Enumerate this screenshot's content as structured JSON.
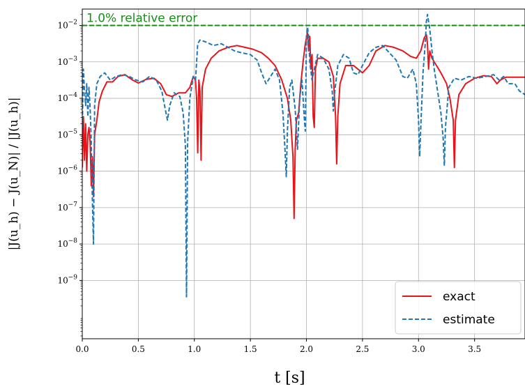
{
  "chart_data": {
    "type": "line",
    "xlabel": "t [s]",
    "ylabel": "|J(u_h) − J(u_N)| / |J(u_h)|",
    "xlim": [
      0.0,
      3.95
    ],
    "ylim_log10": [
      -10.6,
      -1.55
    ],
    "yscale": "log",
    "grid": true,
    "legend_position": "lower-right",
    "x_ticks": [
      "0.0",
      "0.5",
      "1.0",
      "1.5",
      "2.0",
      "2.5",
      "3.0",
      "3.5"
    ],
    "x_tick_values": [
      0.0,
      0.5,
      1.0,
      1.5,
      2.0,
      2.5,
      3.0,
      3.5
    ],
    "y_tick_exponents": [
      -2,
      -3,
      -4,
      -5,
      -6,
      -7,
      -8,
      -9
    ],
    "reference_line": {
      "label": "1.0% relative error",
      "value": 0.01,
      "color": "#1a8a1a"
    },
    "series": [
      {
        "name": "exact",
        "color": "#e8141a",
        "dash": "solid",
        "points": [
          [
            0.0,
            -5.9
          ],
          [
            0.01,
            -4.5
          ],
          [
            0.02,
            -5.7
          ],
          [
            0.03,
            -4.7
          ],
          [
            0.04,
            -6.0
          ],
          [
            0.05,
            -5.0
          ],
          [
            0.06,
            -4.8
          ],
          [
            0.07,
            -5.2
          ],
          [
            0.08,
            -6.4
          ],
          [
            0.09,
            -5.6
          ],
          [
            0.1,
            -6.7
          ],
          [
            0.11,
            -5.0
          ],
          [
            0.13,
            -4.6
          ],
          [
            0.15,
            -4.1
          ],
          [
            0.18,
            -3.8
          ],
          [
            0.22,
            -3.55
          ],
          [
            0.27,
            -3.55
          ],
          [
            0.32,
            -3.4
          ],
          [
            0.38,
            -3.35
          ],
          [
            0.45,
            -3.5
          ],
          [
            0.5,
            -3.58
          ],
          [
            0.57,
            -3.48
          ],
          [
            0.64,
            -3.45
          ],
          [
            0.7,
            -3.6
          ],
          [
            0.75,
            -3.9
          ],
          [
            0.8,
            -3.95
          ],
          [
            0.86,
            -3.85
          ],
          [
            0.92,
            -3.85
          ],
          [
            0.96,
            -3.7
          ],
          [
            0.99,
            -3.4
          ],
          [
            1.01,
            -3.5
          ],
          [
            1.02,
            -4.0
          ],
          [
            1.03,
            -5.5
          ],
          [
            1.04,
            -3.5
          ],
          [
            1.05,
            -3.8
          ],
          [
            1.06,
            -5.7
          ],
          [
            1.07,
            -3.7
          ],
          [
            1.1,
            -3.2
          ],
          [
            1.15,
            -2.9
          ],
          [
            1.22,
            -2.7
          ],
          [
            1.3,
            -2.6
          ],
          [
            1.38,
            -2.55
          ],
          [
            1.45,
            -2.6
          ],
          [
            1.52,
            -2.65
          ],
          [
            1.6,
            -2.75
          ],
          [
            1.66,
            -2.9
          ],
          [
            1.72,
            -3.1
          ],
          [
            1.78,
            -3.5
          ],
          [
            1.83,
            -4.0
          ],
          [
            1.86,
            -4.6
          ],
          [
            1.88,
            -5.6
          ],
          [
            1.89,
            -7.3
          ],
          [
            1.9,
            -5.4
          ],
          [
            1.91,
            -4.6
          ],
          [
            1.93,
            -4.4
          ],
          [
            1.95,
            -3.6
          ],
          [
            1.97,
            -3.0
          ],
          [
            1.99,
            -2.5
          ],
          [
            2.01,
            -2.2
          ],
          [
            2.02,
            -2.7
          ],
          [
            2.03,
            -2.3
          ],
          [
            2.04,
            -3.2
          ],
          [
            2.05,
            -2.8
          ],
          [
            2.06,
            -4.5
          ],
          [
            2.07,
            -4.8
          ],
          [
            2.08,
            -3.2
          ],
          [
            2.1,
            -2.9
          ],
          [
            2.15,
            -2.9
          ],
          [
            2.2,
            -3.0
          ],
          [
            2.24,
            -3.4
          ],
          [
            2.26,
            -4.5
          ],
          [
            2.27,
            -5.8
          ],
          [
            2.28,
            -4.5
          ],
          [
            2.3,
            -3.6
          ],
          [
            2.35,
            -3.1
          ],
          [
            2.42,
            -3.1
          ],
          [
            2.5,
            -3.3
          ],
          [
            2.56,
            -3.1
          ],
          [
            2.62,
            -2.7
          ],
          [
            2.7,
            -2.55
          ],
          [
            2.78,
            -2.6
          ],
          [
            2.86,
            -2.7
          ],
          [
            2.93,
            -2.85
          ],
          [
            2.98,
            -2.9
          ],
          [
            3.02,
            -2.7
          ],
          [
            3.05,
            -2.35
          ],
          [
            3.07,
            -2.25
          ],
          [
            3.08,
            -2.5
          ],
          [
            3.09,
            -3.2
          ],
          [
            3.1,
            -2.7
          ],
          [
            3.12,
            -2.9
          ],
          [
            3.16,
            -3.1
          ],
          [
            3.2,
            -3.3
          ],
          [
            3.25,
            -3.6
          ],
          [
            3.28,
            -4.0
          ],
          [
            3.31,
            -4.6
          ],
          [
            3.32,
            -5.9
          ],
          [
            3.33,
            -4.6
          ],
          [
            3.36,
            -3.9
          ],
          [
            3.42,
            -3.6
          ],
          [
            3.5,
            -3.45
          ],
          [
            3.58,
            -3.38
          ],
          [
            3.65,
            -3.4
          ],
          [
            3.7,
            -3.6
          ],
          [
            3.73,
            -3.5
          ],
          [
            3.78,
            -3.42
          ],
          [
            3.85,
            -3.42
          ],
          [
            3.95,
            -3.42
          ]
        ]
      },
      {
        "name": "estimate",
        "color": "#1f77b4",
        "dash": "dashed",
        "points": [
          [
            0.0,
            -4.8
          ],
          [
            0.01,
            -3.2
          ],
          [
            0.02,
            -3.8
          ],
          [
            0.03,
            -4.2
          ],
          [
            0.04,
            -3.6
          ],
          [
            0.05,
            -4.5
          ],
          [
            0.06,
            -3.7
          ],
          [
            0.07,
            -4.3
          ],
          [
            0.08,
            -5.2
          ],
          [
            0.09,
            -6.8
          ],
          [
            0.1,
            -8.0
          ],
          [
            0.11,
            -4.2
          ],
          [
            0.13,
            -3.6
          ],
          [
            0.16,
            -3.4
          ],
          [
            0.2,
            -3.3
          ],
          [
            0.25,
            -3.5
          ],
          [
            0.3,
            -3.4
          ],
          [
            0.36,
            -3.35
          ],
          [
            0.42,
            -3.4
          ],
          [
            0.48,
            -3.5
          ],
          [
            0.54,
            -3.55
          ],
          [
            0.6,
            -3.4
          ],
          [
            0.66,
            -3.5
          ],
          [
            0.71,
            -3.8
          ],
          [
            0.74,
            -4.3
          ],
          [
            0.76,
            -4.6
          ],
          [
            0.78,
            -4.2
          ],
          [
            0.82,
            -3.85
          ],
          [
            0.87,
            -3.95
          ],
          [
            0.9,
            -4.4
          ],
          [
            0.92,
            -5.3
          ],
          [
            0.93,
            -9.45
          ],
          [
            0.94,
            -5.2
          ],
          [
            0.96,
            -4.0
          ],
          [
            0.99,
            -3.4
          ],
          [
            1.01,
            -3.5
          ],
          [
            1.03,
            -2.5
          ],
          [
            1.05,
            -2.4
          ],
          [
            1.1,
            -2.45
          ],
          [
            1.17,
            -2.55
          ],
          [
            1.24,
            -2.5
          ],
          [
            1.3,
            -2.6
          ],
          [
            1.36,
            -2.7
          ],
          [
            1.42,
            -2.75
          ],
          [
            1.5,
            -2.8
          ],
          [
            1.56,
            -2.95
          ],
          [
            1.6,
            -3.3
          ],
          [
            1.64,
            -3.6
          ],
          [
            1.68,
            -3.4
          ],
          [
            1.72,
            -3.2
          ],
          [
            1.76,
            -3.5
          ],
          [
            1.79,
            -4.4
          ],
          [
            1.81,
            -5.5
          ],
          [
            1.82,
            -6.15
          ],
          [
            1.83,
            -4.9
          ],
          [
            1.85,
            -3.7
          ],
          [
            1.87,
            -3.5
          ],
          [
            1.9,
            -4.3
          ],
          [
            1.92,
            -5.4
          ],
          [
            1.94,
            -4.0
          ],
          [
            1.96,
            -3.5
          ],
          [
            1.98,
            -4.5
          ],
          [
            1.99,
            -4.9
          ],
          [
            2.0,
            -2.3
          ],
          [
            2.01,
            -2.05
          ],
          [
            2.02,
            -2.3
          ],
          [
            2.03,
            -3.0
          ],
          [
            2.05,
            -3.5
          ],
          [
            2.07,
            -3.2
          ],
          [
            2.1,
            -2.8
          ],
          [
            2.15,
            -2.9
          ],
          [
            2.2,
            -3.2
          ],
          [
            2.23,
            -3.8
          ],
          [
            2.24,
            -4.35
          ],
          [
            2.25,
            -3.9
          ],
          [
            2.28,
            -3.1
          ],
          [
            2.33,
            -2.8
          ],
          [
            2.38,
            -2.9
          ],
          [
            2.42,
            -3.3
          ],
          [
            2.46,
            -3.35
          ],
          [
            2.5,
            -3.1
          ],
          [
            2.56,
            -2.75
          ],
          [
            2.62,
            -2.6
          ],
          [
            2.68,
            -2.55
          ],
          [
            2.74,
            -2.75
          ],
          [
            2.8,
            -2.95
          ],
          [
            2.86,
            -3.4
          ],
          [
            2.9,
            -3.45
          ],
          [
            2.95,
            -3.2
          ],
          [
            2.98,
            -3.6
          ],
          [
            3.0,
            -4.6
          ],
          [
            3.01,
            -5.6
          ],
          [
            3.02,
            -4.8
          ],
          [
            3.04,
            -3.3
          ],
          [
            3.06,
            -2.5
          ],
          [
            3.07,
            -1.9
          ],
          [
            3.08,
            -1.7
          ],
          [
            3.1,
            -2.1
          ],
          [
            3.12,
            -2.7
          ],
          [
            3.14,
            -3.2
          ],
          [
            3.17,
            -3.8
          ],
          [
            3.2,
            -4.4
          ],
          [
            3.22,
            -5.1
          ],
          [
            3.23,
            -5.85
          ],
          [
            3.24,
            -4.8
          ],
          [
            3.27,
            -3.7
          ],
          [
            3.32,
            -3.45
          ],
          [
            3.38,
            -3.5
          ],
          [
            3.45,
            -3.4
          ],
          [
            3.52,
            -3.45
          ],
          [
            3.6,
            -3.4
          ],
          [
            3.67,
            -3.35
          ],
          [
            3.72,
            -3.5
          ],
          [
            3.76,
            -3.4
          ],
          [
            3.8,
            -3.6
          ],
          [
            3.86,
            -3.6
          ],
          [
            3.9,
            -3.8
          ],
          [
            3.95,
            -3.9
          ]
        ]
      }
    ]
  }
}
